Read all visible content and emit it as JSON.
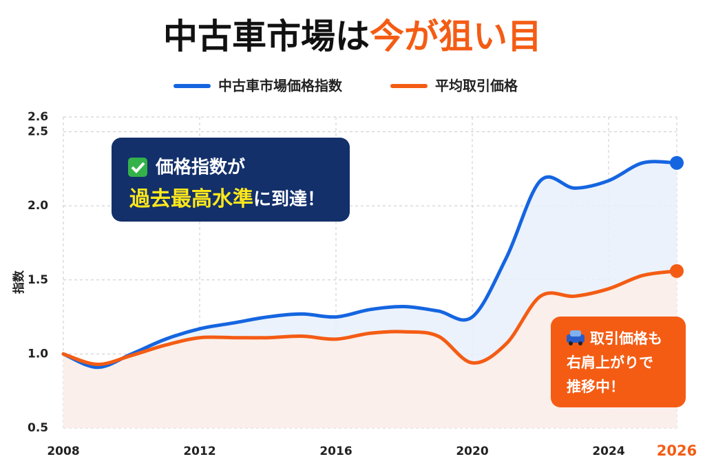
{
  "chart_data": {
    "type": "line",
    "title": "中古車市場は",
    "title_highlight": "今が狙い目",
    "y_label": "指数",
    "x": [
      2008,
      2009,
      2010,
      2011,
      2012,
      2013,
      2014,
      2015,
      2016,
      2017,
      2018,
      2019,
      2020,
      2021,
      2022,
      2023,
      2024,
      2025,
      2026
    ],
    "series": [
      {
        "name": "中古車市場価格指数",
        "color": "#1565e0",
        "fill": "#e8f0fc",
        "values": [
          1.0,
          0.91,
          1.0,
          1.1,
          1.17,
          1.21,
          1.25,
          1.27,
          1.25,
          1.3,
          1.32,
          1.29,
          1.25,
          1.65,
          2.17,
          2.12,
          2.17,
          2.29,
          2.29
        ]
      },
      {
        "name": "平均取引価格",
        "color": "#f45c14",
        "fill": "#fdeee6",
        "values": [
          1.0,
          0.93,
          0.99,
          1.06,
          1.11,
          1.11,
          1.11,
          1.12,
          1.1,
          1.14,
          1.15,
          1.12,
          0.94,
          1.07,
          1.39,
          1.39,
          1.44,
          1.53,
          1.56
        ]
      }
    ],
    "xlim": [
      2008,
      2026
    ],
    "xticks": [
      2008,
      2012,
      2016,
      2020,
      2024,
      2026
    ],
    "ylim": [
      0.5,
      2.6
    ],
    "yticks": [
      0.5,
      {
        "value": 1,
        "label": "1.0"
      },
      1.5,
      {
        "value": 2,
        "label": "2.0"
      },
      2.5,
      2.6
    ],
    "grid": true,
    "annotations": [
      {
        "lines": [
          "価格指数が"
        ],
        "highlight": "過去最高水準",
        "rest": "に到達！"
      },
      {
        "lines": [
          "取引価格も",
          "右肩上がりで",
          "推移中！"
        ]
      }
    ]
  }
}
